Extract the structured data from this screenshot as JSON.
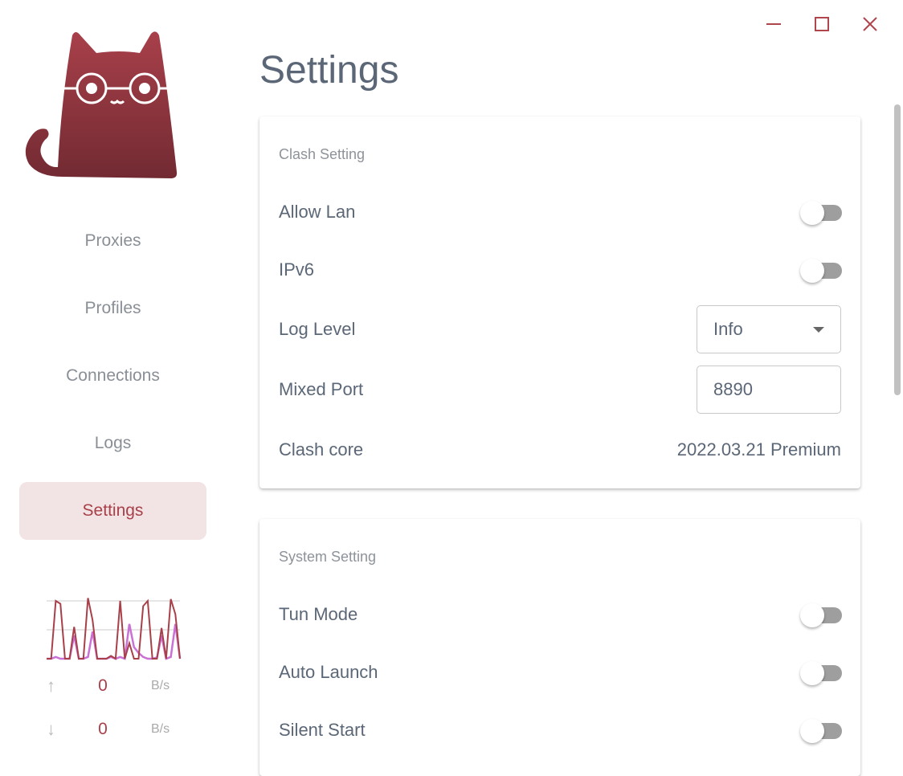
{
  "window": {
    "minimize_icon": "minimize-icon",
    "maximize_icon": "maximize-icon",
    "close_icon": "close-icon",
    "accent": "#a8404a"
  },
  "sidebar": {
    "items": [
      {
        "label": "Proxies"
      },
      {
        "label": "Profiles"
      },
      {
        "label": "Connections"
      },
      {
        "label": "Logs"
      },
      {
        "label": "Settings",
        "active": true
      }
    ]
  },
  "traffic": {
    "upload": {
      "value": "0",
      "unit": "B/s"
    },
    "download": {
      "value": "0",
      "unit": "B/s"
    },
    "graph": {
      "ylim": [
        0,
        100
      ],
      "upload_color": "#a8404a",
      "download_color": "#c971d4",
      "upload": [
        0,
        0,
        100,
        95,
        0,
        0,
        55,
        0,
        0,
        105,
        67,
        0,
        0,
        0,
        5,
        0,
        100,
        0,
        27,
        0,
        0,
        91,
        100,
        0,
        0,
        53,
        0,
        103,
        77,
        0
      ],
      "download": [
        0,
        0,
        3,
        0,
        0,
        0,
        40,
        0,
        0,
        3,
        47,
        0,
        0,
        0,
        3,
        0,
        3,
        0,
        60,
        20,
        10,
        3,
        0,
        0,
        2,
        40,
        0,
        3,
        60,
        0
      ]
    }
  },
  "page": {
    "title": "Settings"
  },
  "clash_setting": {
    "title": "Clash Setting",
    "allow_lan": {
      "label": "Allow Lan",
      "on": false
    },
    "ipv6": {
      "label": "IPv6",
      "on": false
    },
    "log_level": {
      "label": "Log Level",
      "value": "Info"
    },
    "mixed_port": {
      "label": "Mixed Port",
      "value": "8890"
    },
    "clash_core": {
      "label": "Clash core",
      "value": "2022.03.21 Premium"
    }
  },
  "system_setting": {
    "title": "System Setting",
    "tun_mode": {
      "label": "Tun Mode",
      "on": false
    },
    "auto_launch": {
      "label": "Auto Launch",
      "on": false
    },
    "silent_start": {
      "label": "Silent Start",
      "on": false
    }
  }
}
